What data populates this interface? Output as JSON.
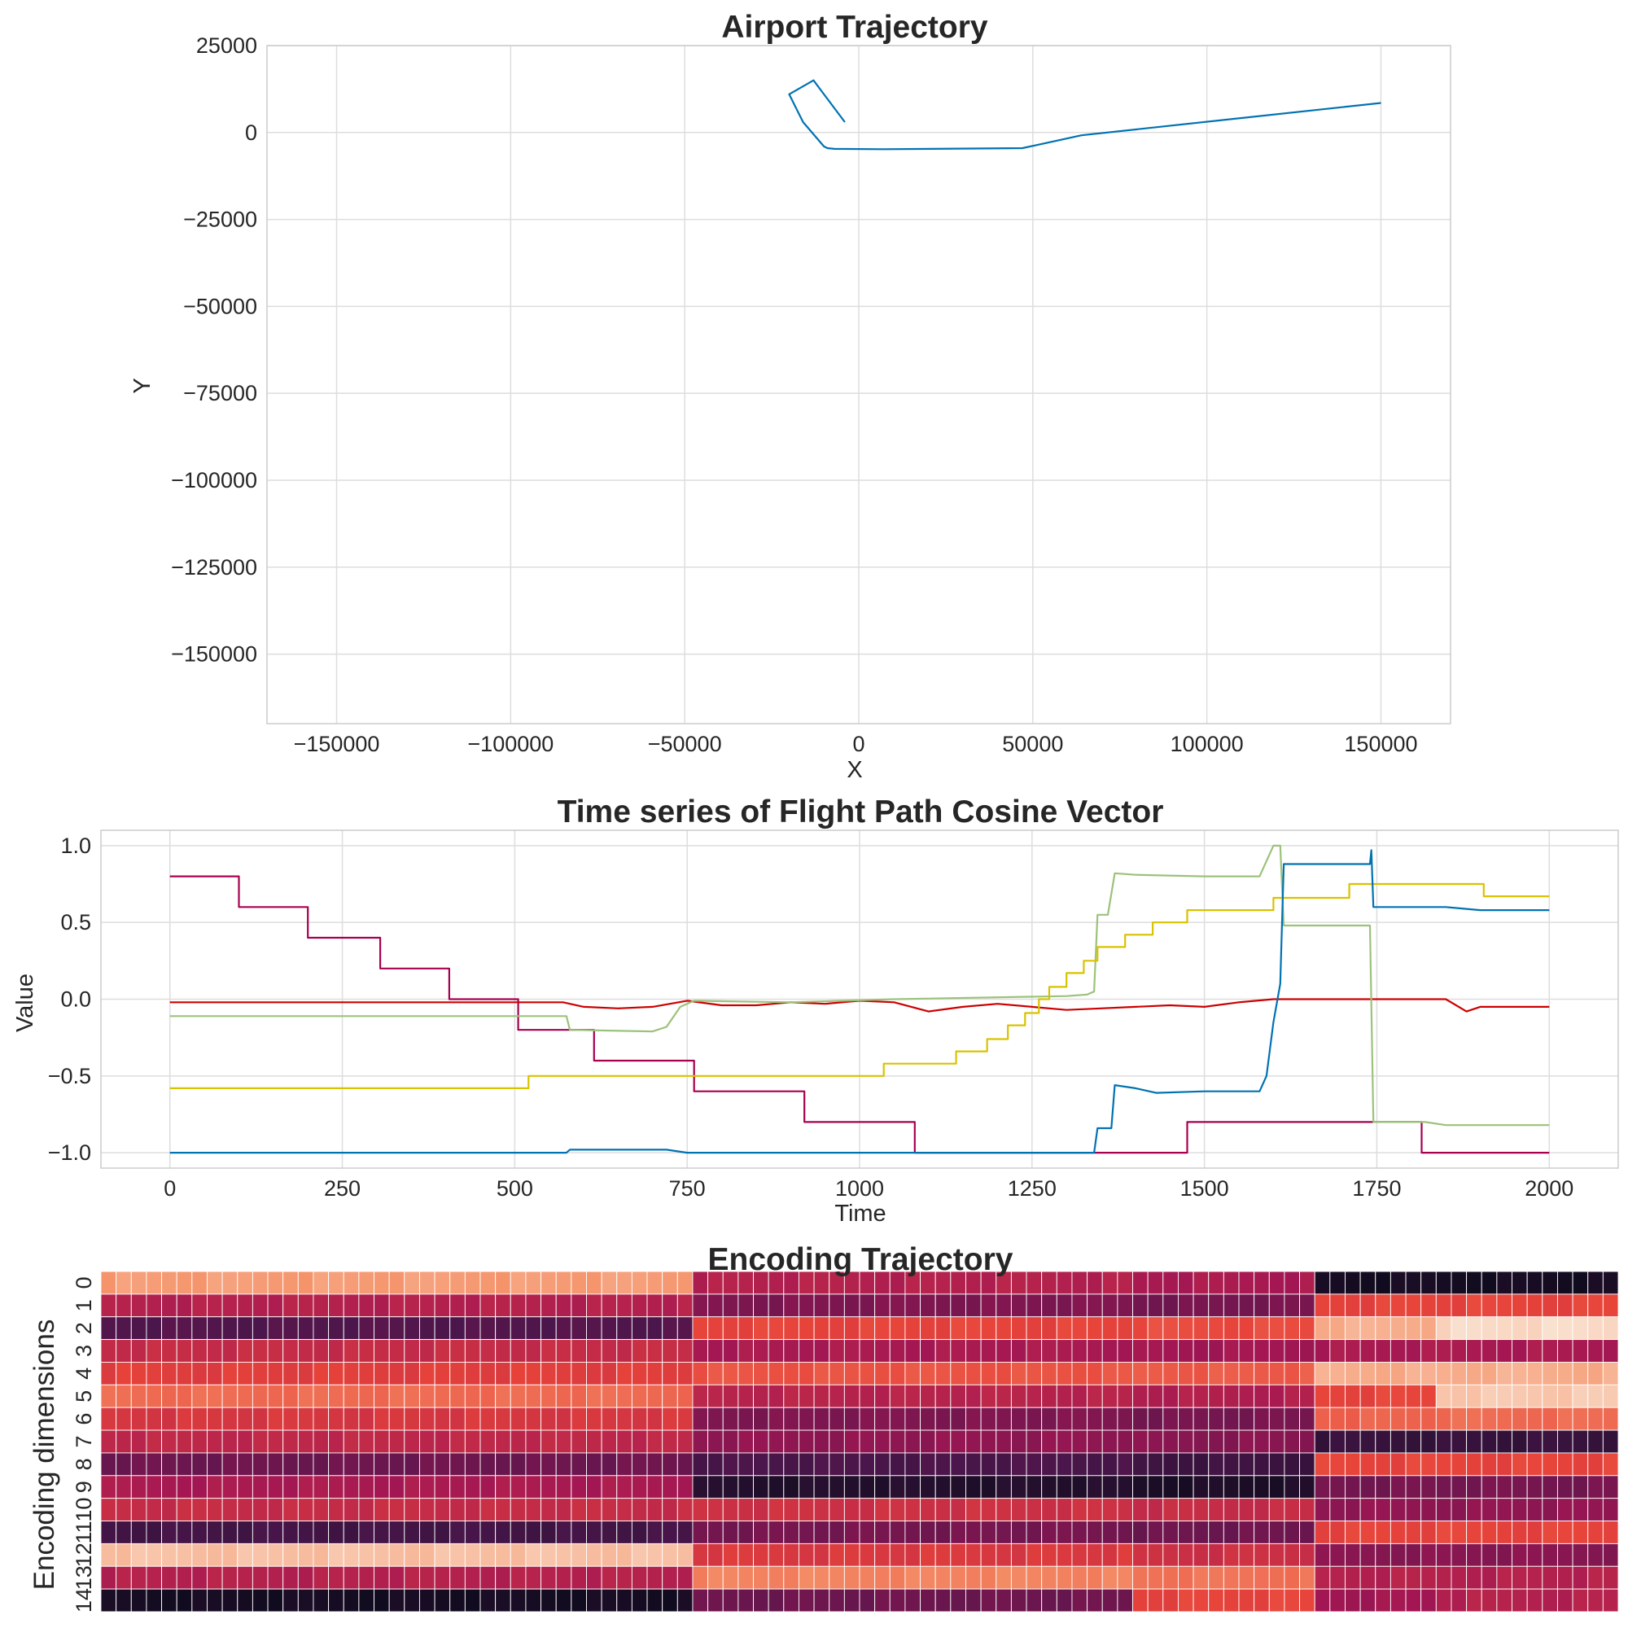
{
  "chart_data": [
    {
      "type": "line",
      "title": "Airport Trajectory",
      "xlabel": "X",
      "ylabel": "Y",
      "xlim": [
        -170000,
        170000
      ],
      "ylim": [
        -170000,
        25000
      ],
      "xticks": [
        -150000,
        -100000,
        -50000,
        0,
        50000,
        100000,
        150000
      ],
      "yticks": [
        25000,
        0,
        -25000,
        -50000,
        -75000,
        -100000,
        -125000,
        -150000
      ],
      "xtick_labels": [
        "−150000",
        "−100000",
        "−50000",
        "0",
        "50000",
        "100000",
        "150000"
      ],
      "ytick_labels": [
        "25000",
        "0",
        "−25000",
        "−50000",
        "−75000",
        "−100000",
        "−125000",
        "−150000"
      ],
      "grid": true,
      "series": [
        {
          "color": "#0072b2",
          "x": [
            -4000,
            -13000,
            -20000,
            -16000,
            -10000,
            -9000,
            -7000,
            7000,
            47000,
            64000,
            150000
          ],
          "y": [
            3000,
            15000,
            11000,
            3000,
            -4000,
            -4500,
            -4700,
            -4800,
            -4500,
            -800,
            8500
          ]
        }
      ]
    },
    {
      "type": "line",
      "title": "Time series of Flight Path Cosine Vector",
      "xlabel": "Time",
      "ylabel": "Value",
      "xlim": [
        -100,
        2100
      ],
      "ylim": [
        -1.1,
        1.1
      ],
      "xticks": [
        0,
        250,
        500,
        750,
        1000,
        1250,
        1500,
        1750,
        2000
      ],
      "yticks": [
        1.0,
        0.5,
        0.0,
        -0.5,
        -1.0
      ],
      "xtick_labels": [
        "0",
        "250",
        "500",
        "750",
        "1000",
        "1250",
        "1500",
        "1750",
        "2000"
      ],
      "ytick_labels": [
        "1.0",
        "0.5",
        "0.0",
        "−0.5",
        "−1.0"
      ],
      "grid": true,
      "series": [
        {
          "color": "#a6004f",
          "x": [
            0,
            100,
            100,
            200,
            200,
            305,
            305,
            405,
            405,
            505,
            505,
            615,
            615,
            760,
            760,
            920,
            920,
            1080,
            1080,
            1475,
            1475,
            1815,
            1815,
            2000
          ],
          "y": [
            0.8,
            0.8,
            0.6,
            0.6,
            0.4,
            0.4,
            0.2,
            0.2,
            0.0,
            0.0,
            -0.2,
            -0.2,
            -0.4,
            -0.4,
            -0.6,
            -0.6,
            -0.8,
            -0.8,
            -1.0,
            -1.0,
            -0.8,
            -0.8,
            -1.0,
            -1.0
          ]
        },
        {
          "color": "#cc0000",
          "x": [
            0,
            570,
            600,
            650,
            700,
            750,
            800,
            850,
            900,
            950,
            1000,
            1050,
            1100,
            1150,
            1200,
            1250,
            1300,
            1350,
            1400,
            1450,
            1500,
            1550,
            1600,
            1700,
            1850,
            1880,
            1900,
            1950,
            2000
          ],
          "y": [
            -0.02,
            -0.02,
            -0.05,
            -0.06,
            -0.05,
            -0.01,
            -0.04,
            -0.04,
            -0.02,
            -0.03,
            -0.01,
            -0.02,
            -0.08,
            -0.05,
            -0.03,
            -0.05,
            -0.07,
            -0.06,
            -0.05,
            -0.04,
            -0.05,
            -0.02,
            0.0,
            0.0,
            0.0,
            -0.08,
            -0.05,
            -0.05,
            -0.05
          ]
        },
        {
          "color": "#9cc27a",
          "x": [
            0,
            575,
            580,
            700,
            720,
            740,
            760,
            900,
            1050,
            1300,
            1330,
            1340,
            1345,
            1360,
            1370,
            1400,
            1500,
            1580,
            1600,
            1610,
            1615,
            1620,
            1740,
            1745,
            1820,
            1850,
            2000
          ],
          "y": [
            -0.11,
            -0.11,
            -0.2,
            -0.21,
            -0.18,
            -0.05,
            -0.01,
            -0.02,
            0.0,
            0.02,
            0.03,
            0.05,
            0.55,
            0.55,
            0.82,
            0.81,
            0.8,
            0.8,
            1.0,
            1.0,
            0.48,
            0.48,
            0.48,
            -0.8,
            -0.8,
            -0.82,
            -0.82
          ]
        },
        {
          "color": "#d9c200",
          "x": [
            0,
            520,
            520,
            1035,
            1035,
            1140,
            1140,
            1185,
            1185,
            1215,
            1215,
            1240,
            1240,
            1260,
            1260,
            1275,
            1275,
            1300,
            1300,
            1325,
            1325,
            1345,
            1345,
            1385,
            1385,
            1425,
            1425,
            1475,
            1475,
            1600,
            1600,
            1710,
            1710,
            1905,
            1905,
            2000
          ],
          "y": [
            -0.58,
            -0.58,
            -0.5,
            -0.5,
            -0.42,
            -0.42,
            -0.34,
            -0.34,
            -0.26,
            -0.26,
            -0.17,
            -0.17,
            -0.09,
            -0.09,
            0.0,
            0.0,
            0.08,
            0.08,
            0.17,
            0.17,
            0.25,
            0.25,
            0.34,
            0.34,
            0.42,
            0.42,
            0.5,
            0.5,
            0.58,
            0.58,
            0.66,
            0.66,
            0.75,
            0.75,
            0.67,
            0.67
          ]
        },
        {
          "color": "#0072b2",
          "x": [
            0,
            575,
            580,
            720,
            750,
            800,
            1000,
            1340,
            1345,
            1365,
            1370,
            1400,
            1430,
            1500,
            1580,
            1590,
            1600,
            1610,
            1615,
            1740,
            1742,
            1745,
            1850,
            1900,
            2000
          ],
          "y": [
            -1.0,
            -1.0,
            -0.98,
            -0.98,
            -1.0,
            -1.0,
            -1.0,
            -1.0,
            -0.84,
            -0.84,
            -0.56,
            -0.58,
            -0.61,
            -0.6,
            -0.6,
            -0.5,
            -0.15,
            0.1,
            0.88,
            0.88,
            0.97,
            0.6,
            0.6,
            0.58,
            0.58
          ]
        }
      ]
    },
    {
      "type": "heatmap",
      "title": "Encoding Trajectory",
      "ylabel": "Encoding dimensions",
      "row_labels": [
        "0",
        "1",
        "2",
        "3",
        "4",
        "5",
        "6",
        "7",
        "8",
        "9",
        "10",
        "11",
        "12",
        "13",
        "14"
      ],
      "n_columns": 100,
      "colormap": "rocket",
      "value_range": [
        0,
        1
      ],
      "segments": [
        {
          "from": 0,
          "to": 39,
          "values": [
            0.82,
            0.45,
            0.22,
            0.5,
            0.58,
            0.7,
            0.55,
            0.48,
            0.28,
            0.42,
            0.5,
            0.18,
            0.9,
            0.45,
            0.04
          ]
        },
        {
          "from": 39,
          "to": 68,
          "values": [
            0.45,
            0.32,
            0.6,
            0.42,
            0.64,
            0.46,
            0.32,
            0.36,
            0.2,
            0.08,
            0.52,
            0.3,
            0.56,
            0.76,
            0.28
          ]
        },
        {
          "from": 68,
          "to": 80,
          "values": [
            0.42,
            0.3,
            0.62,
            0.4,
            0.66,
            0.44,
            0.3,
            0.34,
            0.16,
            0.06,
            0.5,
            0.28,
            0.52,
            0.72,
            0.6
          ]
        },
        {
          "from": 80,
          "to": 88,
          "values": [
            0.04,
            0.6,
            0.86,
            0.42,
            0.86,
            0.6,
            0.68,
            0.14,
            0.6,
            0.3,
            0.36,
            0.6,
            0.34,
            0.45,
            0.4
          ]
        },
        {
          "from": 88,
          "to": 100,
          "values": [
            0.04,
            0.6,
            0.96,
            0.42,
            0.86,
            0.92,
            0.7,
            0.14,
            0.6,
            0.3,
            0.36,
            0.6,
            0.34,
            0.45,
            0.45
          ]
        }
      ]
    }
  ]
}
